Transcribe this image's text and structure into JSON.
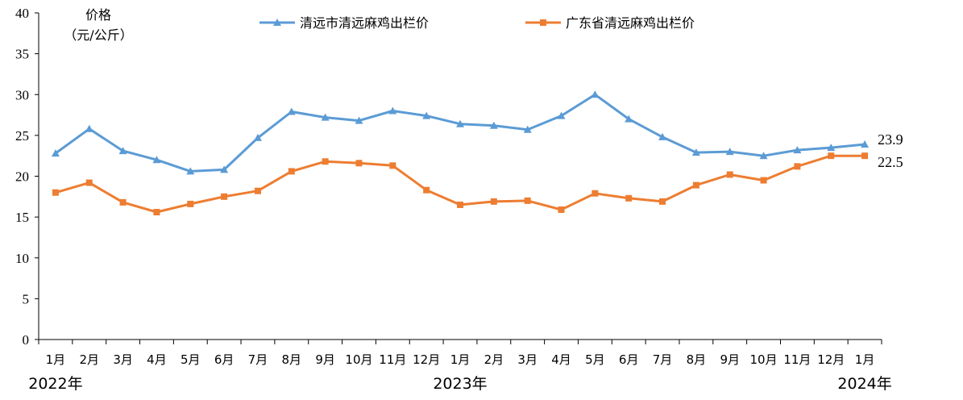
{
  "chart_data": {
    "type": "line",
    "ylabel_line1": "价格",
    "ylabel_line2": "（元/公斤）",
    "ylim": [
      0,
      40
    ],
    "yticks": [
      "0",
      "5",
      "10",
      "15",
      "20",
      "25",
      "30",
      "35",
      "40"
    ],
    "categories": [
      "1月",
      "2月",
      "3月",
      "4月",
      "5月",
      "6月",
      "7月",
      "8月",
      "9月",
      "10月",
      "11月",
      "12月",
      "1月",
      "2月",
      "3月",
      "4月",
      "5月",
      "6月",
      "7月",
      "8月",
      "9月",
      "10月",
      "11月",
      "12月",
      "1月"
    ],
    "year_labels": [
      {
        "text": "2022年",
        "anchor": "1"
      },
      {
        "text": "2023年",
        "anchor": "13"
      },
      {
        "text": "2024年",
        "anchor": "25"
      }
    ],
    "legend_position": "top",
    "series": [
      {
        "name": "清远市清远麻鸡出栏价",
        "color": "#5b9bd5",
        "marker": "triangle",
        "values": [
          22.8,
          25.8,
          23.1,
          22.0,
          20.6,
          20.8,
          24.7,
          27.9,
          27.2,
          26.8,
          28.0,
          27.4,
          26.4,
          26.2,
          25.7,
          27.4,
          30.0,
          27.0,
          24.8,
          22.9,
          23.0,
          22.5,
          23.2,
          23.5,
          23.9
        ],
        "end_label": "23.9"
      },
      {
        "name": "广东省清远麻鸡出栏价",
        "color": "#ed7d31",
        "marker": "square",
        "values": [
          18.0,
          19.2,
          16.8,
          15.6,
          16.6,
          17.5,
          18.2,
          20.6,
          21.8,
          21.6,
          21.3,
          18.3,
          16.5,
          16.9,
          17.0,
          15.9,
          17.9,
          17.3,
          16.9,
          18.9,
          20.2,
          19.5,
          21.2,
          22.5,
          22.5
        ],
        "end_label": "22.5"
      }
    ]
  }
}
